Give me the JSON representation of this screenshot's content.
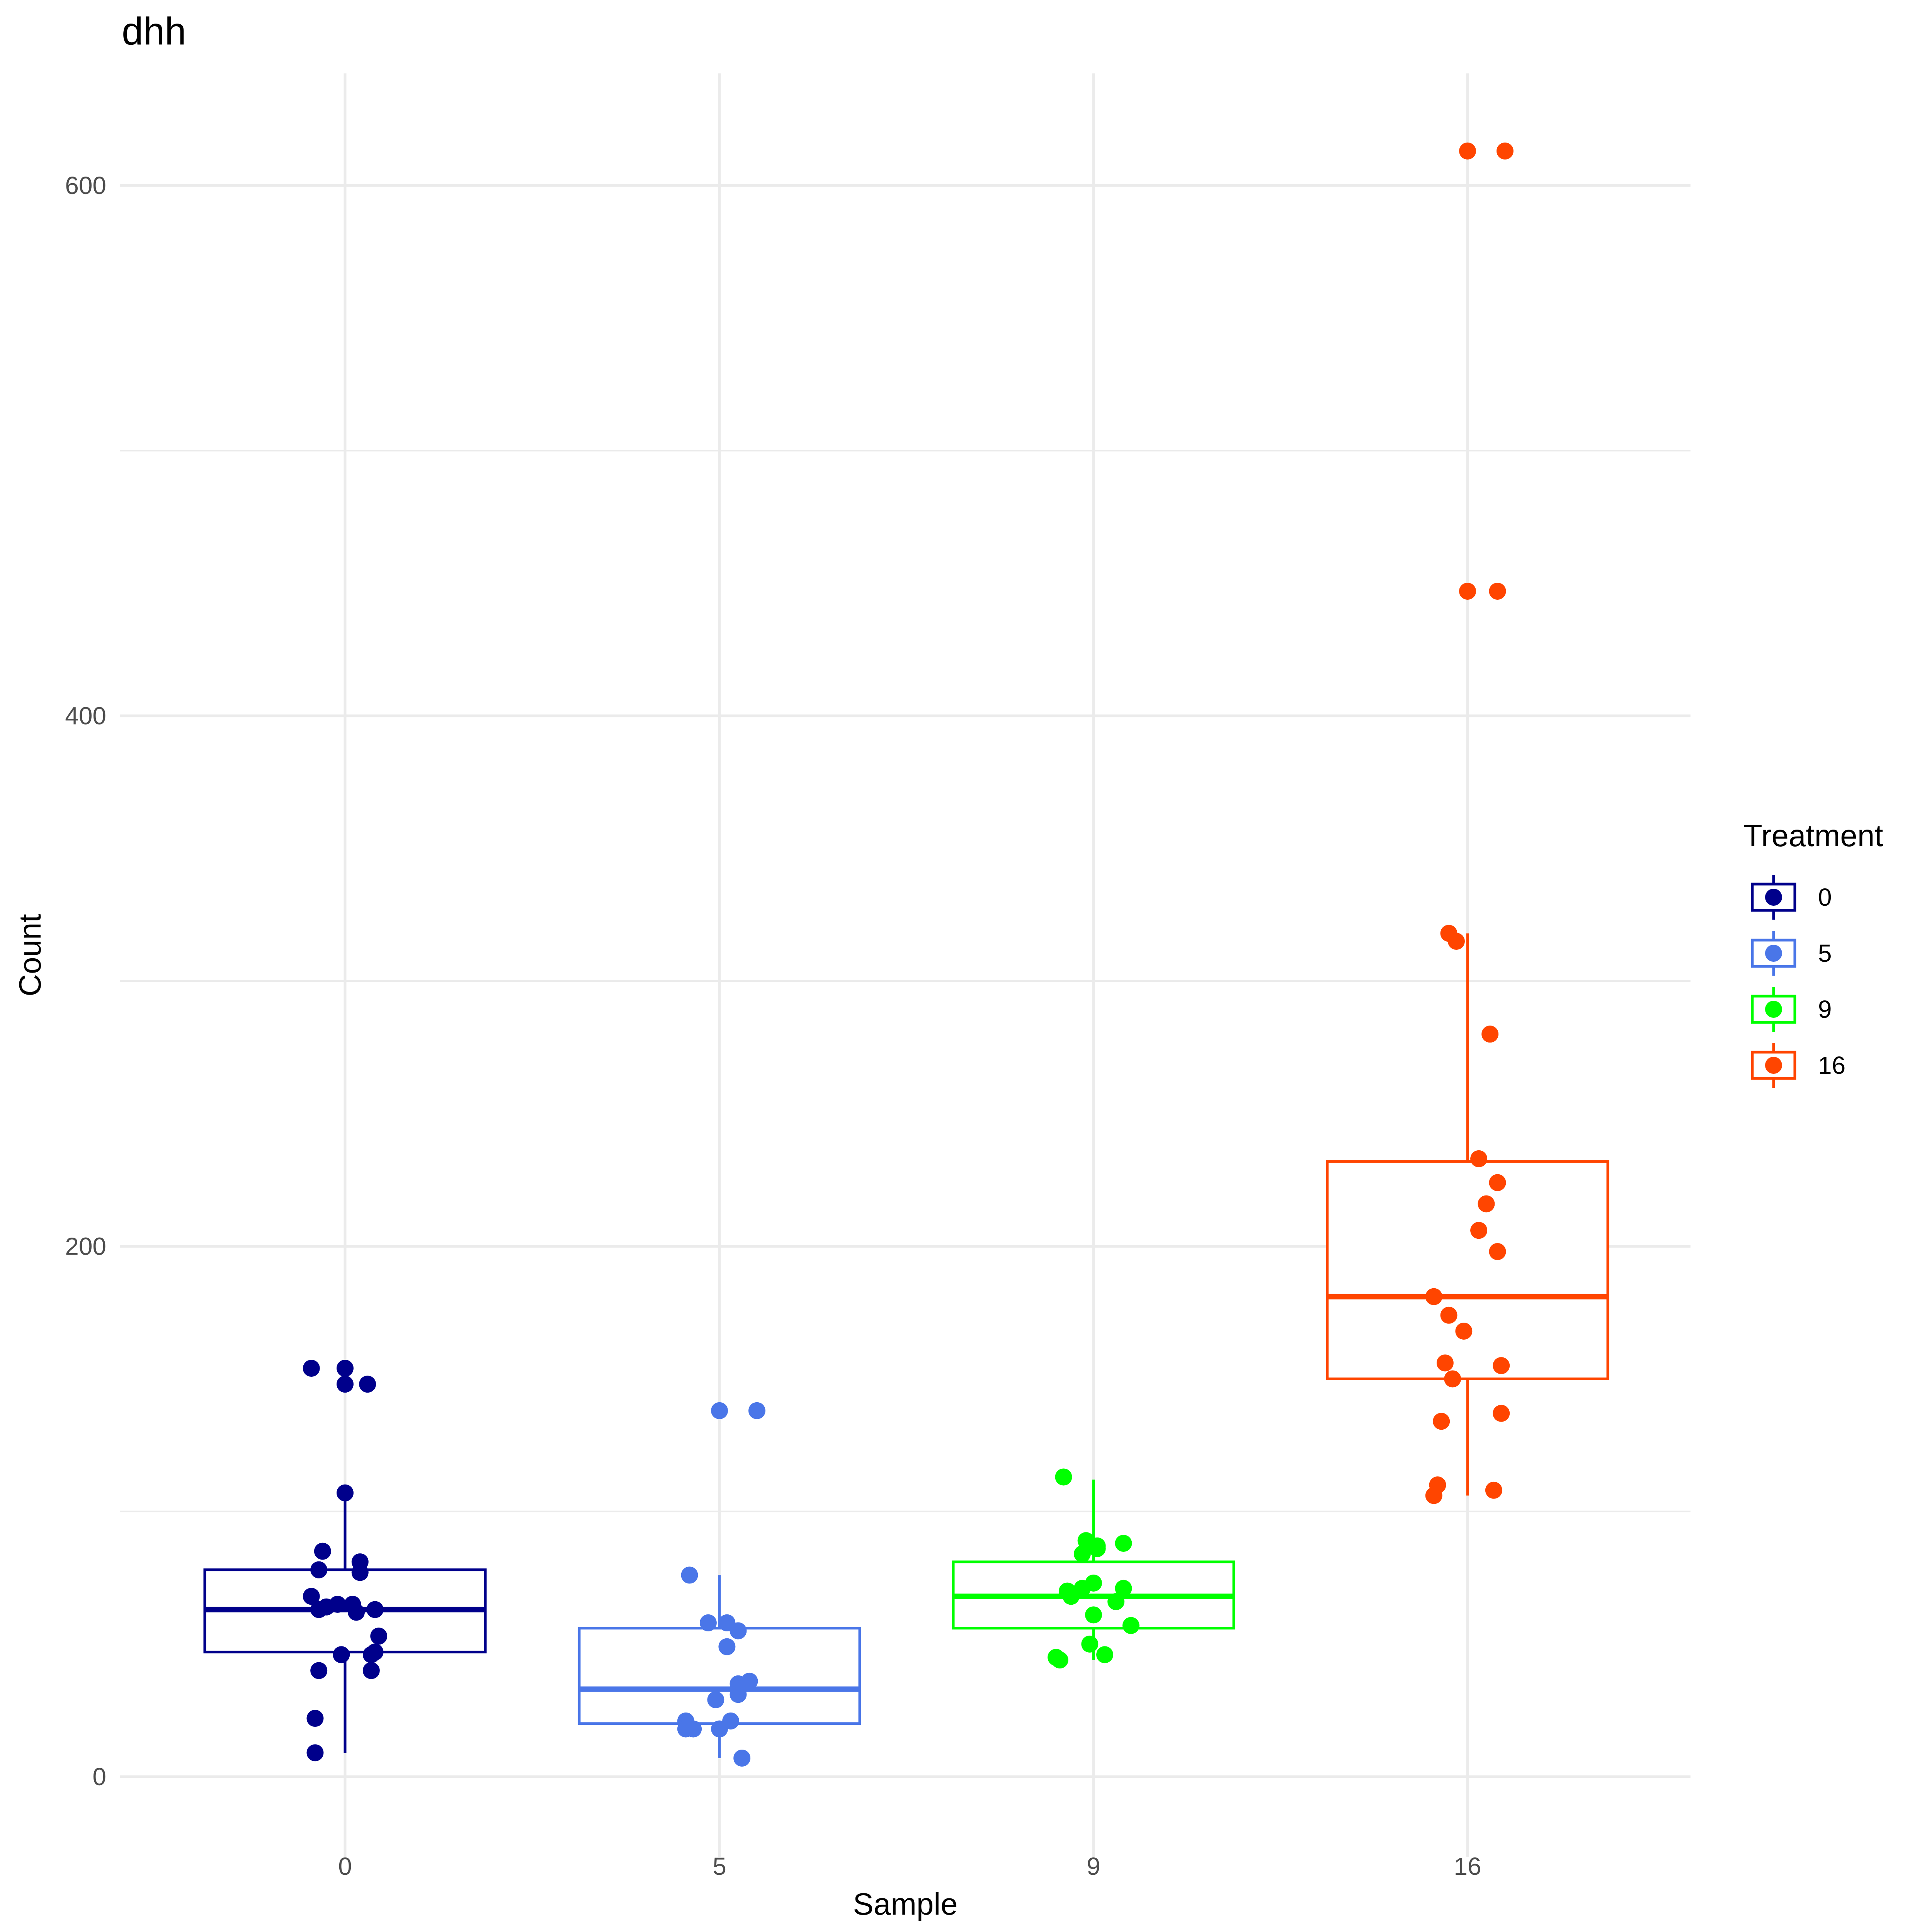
{
  "chart_data": {
    "type": "boxplot",
    "title": "dhh",
    "xlabel": "Sample",
    "ylabel": "Count",
    "ylim": [
      -15,
      640
    ],
    "y_ticks": [
      0,
      200,
      400,
      600
    ],
    "y_minor_ticks": [
      100,
      300,
      500
    ],
    "grid": true,
    "categories": [
      "0",
      "5",
      "9",
      "16"
    ],
    "legend": {
      "title": "Treatment",
      "position": "right",
      "entries": [
        "0",
        "5",
        "9",
        "16"
      ]
    },
    "series": [
      {
        "name": "0",
        "color": "#00008b",
        "box": {
          "q1": 47,
          "median": 63,
          "q3": 78,
          "whisker_low": 9,
          "whisker_high": 107
        },
        "points": [
          {
            "dx": -0.09,
            "y": 154
          },
          {
            "dx": 0.0,
            "y": 154
          },
          {
            "dx": 0.0,
            "y": 148
          },
          {
            "dx": 0.06,
            "y": 148
          },
          {
            "dx": 0.0,
            "y": 107
          },
          {
            "dx": -0.06,
            "y": 85
          },
          {
            "dx": 0.04,
            "y": 81
          },
          {
            "dx": -0.07,
            "y": 78
          },
          {
            "dx": 0.04,
            "y": 77
          },
          {
            "dx": -0.09,
            "y": 68
          },
          {
            "dx": -0.05,
            "y": 64
          },
          {
            "dx": -0.02,
            "y": 65
          },
          {
            "dx": 0.02,
            "y": 65
          },
          {
            "dx": -0.07,
            "y": 63
          },
          {
            "dx": 0.03,
            "y": 62
          },
          {
            "dx": 0.08,
            "y": 63
          },
          {
            "dx": 0.09,
            "y": 53
          },
          {
            "dx": 0.08,
            "y": 47
          },
          {
            "dx": -0.01,
            "y": 46
          },
          {
            "dx": 0.07,
            "y": 46
          },
          {
            "dx": -0.07,
            "y": 40
          },
          {
            "dx": 0.07,
            "y": 40
          },
          {
            "dx": -0.08,
            "y": 22
          },
          {
            "dx": -0.08,
            "y": 9
          }
        ]
      },
      {
        "name": "5",
        "color": "#4a76e8",
        "box": {
          "q1": 20,
          "median": 33,
          "q3": 56,
          "whisker_low": 7,
          "whisker_high": 76
        },
        "points": [
          {
            "dx": 0.0,
            "y": 138
          },
          {
            "dx": 0.1,
            "y": 138
          },
          {
            "dx": -0.08,
            "y": 76
          },
          {
            "dx": -0.03,
            "y": 58
          },
          {
            "dx": 0.02,
            "y": 58
          },
          {
            "dx": 0.05,
            "y": 55
          },
          {
            "dx": 0.02,
            "y": 49
          },
          {
            "dx": 0.05,
            "y": 35
          },
          {
            "dx": 0.08,
            "y": 36
          },
          {
            "dx": 0.05,
            "y": 31
          },
          {
            "dx": -0.01,
            "y": 29
          },
          {
            "dx": 0.03,
            "y": 21
          },
          {
            "dx": -0.09,
            "y": 21
          },
          {
            "dx": -0.09,
            "y": 18
          },
          {
            "dx": -0.07,
            "y": 18
          },
          {
            "dx": 0.0,
            "y": 18
          },
          {
            "dx": 0.06,
            "y": 7
          }
        ]
      },
      {
        "name": "9",
        "color": "#00ff00",
        "box": {
          "q1": 56,
          "median": 68,
          "q3": 81,
          "whisker_low": 44,
          "whisker_high": 112
        },
        "points": [
          {
            "dx": -0.08,
            "y": 113
          },
          {
            "dx": -0.02,
            "y": 89
          },
          {
            "dx": 0.08,
            "y": 88
          },
          {
            "dx": -0.03,
            "y": 84
          },
          {
            "dx": 0.01,
            "y": 87
          },
          {
            "dx": 0.01,
            "y": 86
          },
          {
            "dx": 0.0,
            "y": 73
          },
          {
            "dx": -0.03,
            "y": 71
          },
          {
            "dx": 0.08,
            "y": 71
          },
          {
            "dx": -0.07,
            "y": 70
          },
          {
            "dx": -0.06,
            "y": 68
          },
          {
            "dx": 0.06,
            "y": 66
          },
          {
            "dx": 0.0,
            "y": 61
          },
          {
            "dx": 0.1,
            "y": 57
          },
          {
            "dx": -0.01,
            "y": 50
          },
          {
            "dx": 0.03,
            "y": 46
          },
          {
            "dx": -0.1,
            "y": 45
          },
          {
            "dx": -0.09,
            "y": 44
          }
        ]
      },
      {
        "name": "16",
        "color": "#ff4500",
        "box": {
          "q1": 150,
          "median": 181,
          "q3": 232,
          "whisker_low": 106,
          "whisker_high": 318
        },
        "points": [
          {
            "dx": 0.0,
            "y": 613
          },
          {
            "dx": 0.1,
            "y": 613
          },
          {
            "dx": 0.0,
            "y": 447
          },
          {
            "dx": 0.08,
            "y": 447
          },
          {
            "dx": -0.05,
            "y": 318
          },
          {
            "dx": -0.03,
            "y": 315
          },
          {
            "dx": 0.06,
            "y": 280
          },
          {
            "dx": 0.03,
            "y": 233
          },
          {
            "dx": 0.08,
            "y": 224
          },
          {
            "dx": 0.05,
            "y": 216
          },
          {
            "dx": 0.03,
            "y": 206
          },
          {
            "dx": 0.08,
            "y": 198
          },
          {
            "dx": -0.09,
            "y": 181
          },
          {
            "dx": -0.05,
            "y": 174
          },
          {
            "dx": -0.01,
            "y": 168
          },
          {
            "dx": -0.06,
            "y": 156
          },
          {
            "dx": 0.09,
            "y": 155
          },
          {
            "dx": -0.04,
            "y": 150
          },
          {
            "dx": 0.09,
            "y": 137
          },
          {
            "dx": -0.07,
            "y": 134
          },
          {
            "dx": -0.08,
            "y": 110
          },
          {
            "dx": 0.07,
            "y": 108
          },
          {
            "dx": -0.09,
            "y": 106
          }
        ]
      }
    ]
  }
}
